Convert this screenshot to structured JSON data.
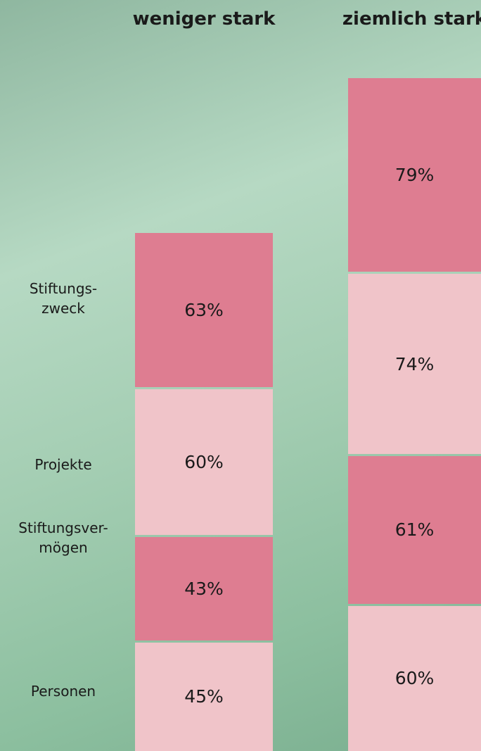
{
  "chart_data": {
    "type": "bar",
    "stacked": true,
    "categories": [
      "weniger stark",
      "ziemlich stark"
    ],
    "series": [
      {
        "name": "Stiftungs-\nzweck",
        "color": "#de7d91",
        "values": [
          63,
          79
        ],
        "value_labels": [
          "63%",
          "79%"
        ]
      },
      {
        "name": "Projekte",
        "color": "#f0c4c9",
        "values": [
          60,
          74
        ],
        "value_labels": [
          "60%",
          "74%"
        ]
      },
      {
        "name": "Stiftungsver-\nmögen",
        "color": "#de7d91",
        "values": [
          43,
          61
        ],
        "value_labels": [
          "43%",
          "61%"
        ]
      },
      {
        "name": "Personen",
        "color": "#f0c4c9",
        "values": [
          45,
          60
        ],
        "value_labels": [
          "45%",
          "60%"
        ]
      }
    ]
  }
}
